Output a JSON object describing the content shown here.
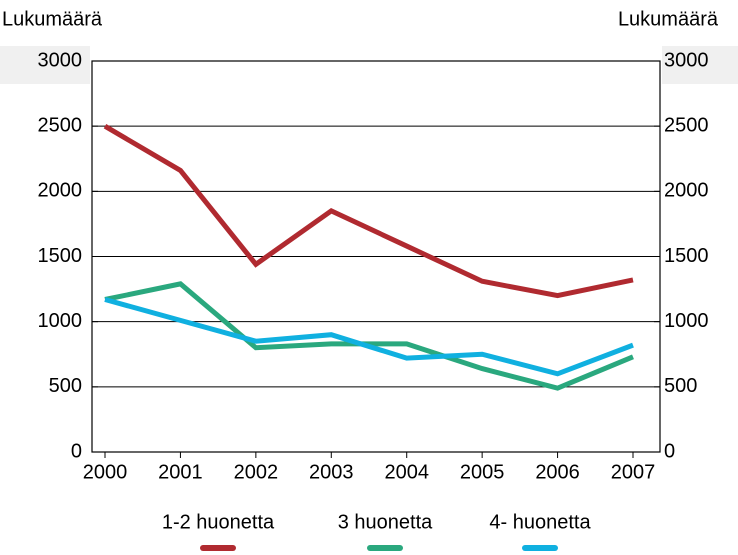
{
  "chart_data": {
    "type": "line",
    "y_label": "Lukumäärä",
    "y2_label": "Lukumäärä",
    "categories": [
      "2000",
      "2001",
      "2002",
      "2003",
      "2004",
      "2005",
      "2006",
      "2007"
    ],
    "series": [
      {
        "name": "1-2 huonetta",
        "color": "#b02a30",
        "values": [
          2500,
          2160,
          1440,
          1850,
          1580,
          1310,
          1200,
          1320
        ]
      },
      {
        "name": "3 huonetta",
        "color": "#2aa87e",
        "values": [
          1170,
          1290,
          800,
          830,
          830,
          640,
          490,
          730
        ]
      },
      {
        "name": "4- huonetta",
        "color": "#10b0e0",
        "values": [
          1170,
          1010,
          850,
          900,
          720,
          750,
          600,
          820
        ]
      }
    ],
    "ylim": [
      0,
      3000
    ],
    "yticks": [
      0,
      500,
      1000,
      1500,
      2000,
      2500,
      3000
    ],
    "y2lim": [
      0,
      3000
    ],
    "y2ticks": [
      0,
      500,
      1000,
      1500,
      2000,
      2500,
      3000
    ],
    "grid": true,
    "legend": "bottom"
  }
}
